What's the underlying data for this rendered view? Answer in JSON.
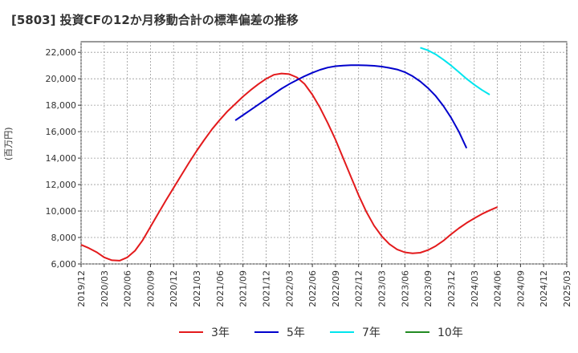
{
  "chart_data": {
    "type": "line",
    "title": "[5803]  投資CFの12か月移動合計の標準偏差の推移",
    "ylabel": "(百万円)",
    "xlabel": "",
    "ylim": [
      6000,
      22800
    ],
    "yticks": [
      6000,
      8000,
      10000,
      12000,
      14000,
      16000,
      18000,
      20000,
      22000
    ],
    "ytick_labels": [
      "6,000",
      "8,000",
      "10,000",
      "12,000",
      "14,000",
      "16,000",
      "18,000",
      "20,000",
      "22,000"
    ],
    "xtick_labels": [
      "2019/12",
      "2020/03",
      "2020/06",
      "2020/09",
      "2020/12",
      "2021/03",
      "2021/06",
      "2021/09",
      "2021/12",
      "2022/03",
      "2022/06",
      "2022/09",
      "2022/12",
      "2023/03",
      "2023/06",
      "2023/09",
      "2023/12",
      "2024/03",
      "2024/06",
      "2024/09",
      "2024/12",
      "2025/03"
    ],
    "grid": true,
    "legend_position": "bottom",
    "series": [
      {
        "name": "3年",
        "color": "#e31a1c",
        "points": [
          [
            "2019/12",
            7450
          ],
          [
            "2020/01",
            7200
          ],
          [
            "2020/02",
            6900
          ],
          [
            "2020/03",
            6500
          ],
          [
            "2020/04",
            6280
          ],
          [
            "2020/05",
            6250
          ],
          [
            "2020/06",
            6500
          ],
          [
            "2020/07",
            7000
          ],
          [
            "2020/08",
            7800
          ],
          [
            "2020/09",
            8800
          ],
          [
            "2020/10",
            9800
          ],
          [
            "2020/11",
            10800
          ],
          [
            "2020/12",
            11750
          ],
          [
            "2021/01",
            12700
          ],
          [
            "2021/02",
            13650
          ],
          [
            "2021/03",
            14550
          ],
          [
            "2021/04",
            15400
          ],
          [
            "2021/05",
            16200
          ],
          [
            "2021/06",
            16900
          ],
          [
            "2021/07",
            17550
          ],
          [
            "2021/08",
            18100
          ],
          [
            "2021/09",
            18650
          ],
          [
            "2021/10",
            19150
          ],
          [
            "2021/11",
            19600
          ],
          [
            "2021/12",
            20000
          ],
          [
            "2022/01",
            20300
          ],
          [
            "2022/02",
            20400
          ],
          [
            "2022/03",
            20350
          ],
          [
            "2022/04",
            20100
          ],
          [
            "2022/05",
            19600
          ],
          [
            "2022/06",
            18800
          ],
          [
            "2022/07",
            17800
          ],
          [
            "2022/08",
            16650
          ],
          [
            "2022/09",
            15400
          ],
          [
            "2022/10",
            14000
          ],
          [
            "2022/11",
            12600
          ],
          [
            "2022/12",
            11200
          ],
          [
            "2023/01",
            9950
          ],
          [
            "2023/02",
            8900
          ],
          [
            "2023/03",
            8100
          ],
          [
            "2023/04",
            7500
          ],
          [
            "2023/05",
            7100
          ],
          [
            "2023/06",
            6880
          ],
          [
            "2023/07",
            6800
          ],
          [
            "2023/08",
            6850
          ],
          [
            "2023/09",
            7050
          ],
          [
            "2023/10",
            7350
          ],
          [
            "2023/11",
            7750
          ],
          [
            "2023/12",
            8250
          ],
          [
            "2024/01",
            8700
          ],
          [
            "2024/02",
            9100
          ],
          [
            "2024/03",
            9450
          ],
          [
            "2024/04",
            9780
          ],
          [
            "2024/05",
            10050
          ],
          [
            "2024/06",
            10300
          ]
        ]
      },
      {
        "name": "5年",
        "color": "#0000cc",
        "points": [
          [
            "2021/08",
            16850
          ],
          [
            "2021/09",
            17250
          ],
          [
            "2021/10",
            17650
          ],
          [
            "2021/11",
            18050
          ],
          [
            "2021/12",
            18450
          ],
          [
            "2022/01",
            18850
          ],
          [
            "2022/02",
            19250
          ],
          [
            "2022/03",
            19600
          ],
          [
            "2022/04",
            19900
          ],
          [
            "2022/05",
            20200
          ],
          [
            "2022/06",
            20450
          ],
          [
            "2022/07",
            20680
          ],
          [
            "2022/08",
            20850
          ],
          [
            "2022/09",
            20950
          ],
          [
            "2022/10",
            21000
          ],
          [
            "2022/11",
            21020
          ],
          [
            "2022/12",
            21030
          ],
          [
            "2023/01",
            21010
          ],
          [
            "2023/02",
            20980
          ],
          [
            "2023/03",
            20920
          ],
          [
            "2023/04",
            20820
          ],
          [
            "2023/05",
            20700
          ],
          [
            "2023/06",
            20500
          ],
          [
            "2023/07",
            20200
          ],
          [
            "2023/08",
            19800
          ],
          [
            "2023/09",
            19300
          ],
          [
            "2023/10",
            18700
          ],
          [
            "2023/11",
            17950
          ],
          [
            "2023/12",
            17050
          ],
          [
            "2024/01",
            16000
          ],
          [
            "2024/02",
            14750
          ]
        ]
      },
      {
        "name": "7年",
        "color": "#00e5ee",
        "points": [
          [
            "2023/08",
            22350
          ],
          [
            "2023/09",
            22150
          ],
          [
            "2023/10",
            21850
          ],
          [
            "2023/11",
            21450
          ],
          [
            "2023/12",
            21000
          ],
          [
            "2024/01",
            20500
          ],
          [
            "2024/02",
            20000
          ],
          [
            "2024/03",
            19550
          ],
          [
            "2024/04",
            19150
          ],
          [
            "2024/05",
            18800
          ]
        ]
      },
      {
        "name": "10年",
        "color": "#228b22",
        "points": []
      }
    ]
  }
}
